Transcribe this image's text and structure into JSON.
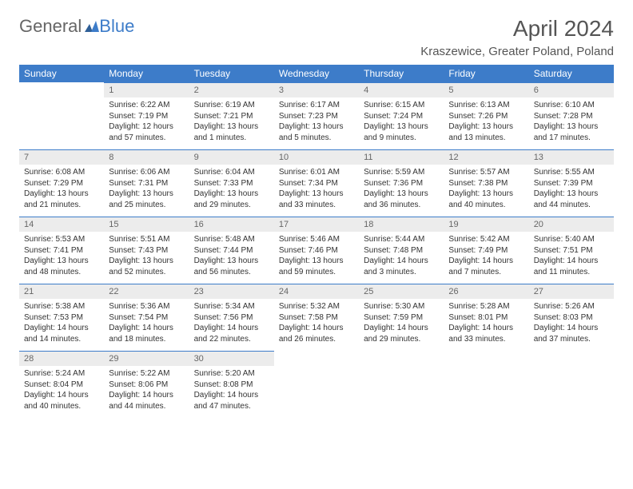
{
  "logo": {
    "text1": "General",
    "text2": "Blue"
  },
  "title": "April 2024",
  "location": "Kraszewice, Greater Poland, Poland",
  "colors": {
    "header_bg": "#3d7cc9",
    "header_text": "#ffffff",
    "daynum_bg": "#ececec",
    "border": "#3d7cc9"
  },
  "font": {
    "title_size": 28,
    "location_size": 15,
    "dayheader_size": 12,
    "daynum_size": 11,
    "detail_size": 10
  },
  "day_names": [
    "Sunday",
    "Monday",
    "Tuesday",
    "Wednesday",
    "Thursday",
    "Friday",
    "Saturday"
  ],
  "weeks": [
    [
      null,
      {
        "n": "1",
        "sr": "Sunrise: 6:22 AM",
        "ss": "Sunset: 7:19 PM",
        "d1": "Daylight: 12 hours",
        "d2": "and 57 minutes."
      },
      {
        "n": "2",
        "sr": "Sunrise: 6:19 AM",
        "ss": "Sunset: 7:21 PM",
        "d1": "Daylight: 13 hours",
        "d2": "and 1 minutes."
      },
      {
        "n": "3",
        "sr": "Sunrise: 6:17 AM",
        "ss": "Sunset: 7:23 PM",
        "d1": "Daylight: 13 hours",
        "d2": "and 5 minutes."
      },
      {
        "n": "4",
        "sr": "Sunrise: 6:15 AM",
        "ss": "Sunset: 7:24 PM",
        "d1": "Daylight: 13 hours",
        "d2": "and 9 minutes."
      },
      {
        "n": "5",
        "sr": "Sunrise: 6:13 AM",
        "ss": "Sunset: 7:26 PM",
        "d1": "Daylight: 13 hours",
        "d2": "and 13 minutes."
      },
      {
        "n": "6",
        "sr": "Sunrise: 6:10 AM",
        "ss": "Sunset: 7:28 PM",
        "d1": "Daylight: 13 hours",
        "d2": "and 17 minutes."
      }
    ],
    [
      {
        "n": "7",
        "sr": "Sunrise: 6:08 AM",
        "ss": "Sunset: 7:29 PM",
        "d1": "Daylight: 13 hours",
        "d2": "and 21 minutes."
      },
      {
        "n": "8",
        "sr": "Sunrise: 6:06 AM",
        "ss": "Sunset: 7:31 PM",
        "d1": "Daylight: 13 hours",
        "d2": "and 25 minutes."
      },
      {
        "n": "9",
        "sr": "Sunrise: 6:04 AM",
        "ss": "Sunset: 7:33 PM",
        "d1": "Daylight: 13 hours",
        "d2": "and 29 minutes."
      },
      {
        "n": "10",
        "sr": "Sunrise: 6:01 AM",
        "ss": "Sunset: 7:34 PM",
        "d1": "Daylight: 13 hours",
        "d2": "and 33 minutes."
      },
      {
        "n": "11",
        "sr": "Sunrise: 5:59 AM",
        "ss": "Sunset: 7:36 PM",
        "d1": "Daylight: 13 hours",
        "d2": "and 36 minutes."
      },
      {
        "n": "12",
        "sr": "Sunrise: 5:57 AM",
        "ss": "Sunset: 7:38 PM",
        "d1": "Daylight: 13 hours",
        "d2": "and 40 minutes."
      },
      {
        "n": "13",
        "sr": "Sunrise: 5:55 AM",
        "ss": "Sunset: 7:39 PM",
        "d1": "Daylight: 13 hours",
        "d2": "and 44 minutes."
      }
    ],
    [
      {
        "n": "14",
        "sr": "Sunrise: 5:53 AM",
        "ss": "Sunset: 7:41 PM",
        "d1": "Daylight: 13 hours",
        "d2": "and 48 minutes."
      },
      {
        "n": "15",
        "sr": "Sunrise: 5:51 AM",
        "ss": "Sunset: 7:43 PM",
        "d1": "Daylight: 13 hours",
        "d2": "and 52 minutes."
      },
      {
        "n": "16",
        "sr": "Sunrise: 5:48 AM",
        "ss": "Sunset: 7:44 PM",
        "d1": "Daylight: 13 hours",
        "d2": "and 56 minutes."
      },
      {
        "n": "17",
        "sr": "Sunrise: 5:46 AM",
        "ss": "Sunset: 7:46 PM",
        "d1": "Daylight: 13 hours",
        "d2": "and 59 minutes."
      },
      {
        "n": "18",
        "sr": "Sunrise: 5:44 AM",
        "ss": "Sunset: 7:48 PM",
        "d1": "Daylight: 14 hours",
        "d2": "and 3 minutes."
      },
      {
        "n": "19",
        "sr": "Sunrise: 5:42 AM",
        "ss": "Sunset: 7:49 PM",
        "d1": "Daylight: 14 hours",
        "d2": "and 7 minutes."
      },
      {
        "n": "20",
        "sr": "Sunrise: 5:40 AM",
        "ss": "Sunset: 7:51 PM",
        "d1": "Daylight: 14 hours",
        "d2": "and 11 minutes."
      }
    ],
    [
      {
        "n": "21",
        "sr": "Sunrise: 5:38 AM",
        "ss": "Sunset: 7:53 PM",
        "d1": "Daylight: 14 hours",
        "d2": "and 14 minutes."
      },
      {
        "n": "22",
        "sr": "Sunrise: 5:36 AM",
        "ss": "Sunset: 7:54 PM",
        "d1": "Daylight: 14 hours",
        "d2": "and 18 minutes."
      },
      {
        "n": "23",
        "sr": "Sunrise: 5:34 AM",
        "ss": "Sunset: 7:56 PM",
        "d1": "Daylight: 14 hours",
        "d2": "and 22 minutes."
      },
      {
        "n": "24",
        "sr": "Sunrise: 5:32 AM",
        "ss": "Sunset: 7:58 PM",
        "d1": "Daylight: 14 hours",
        "d2": "and 26 minutes."
      },
      {
        "n": "25",
        "sr": "Sunrise: 5:30 AM",
        "ss": "Sunset: 7:59 PM",
        "d1": "Daylight: 14 hours",
        "d2": "and 29 minutes."
      },
      {
        "n": "26",
        "sr": "Sunrise: 5:28 AM",
        "ss": "Sunset: 8:01 PM",
        "d1": "Daylight: 14 hours",
        "d2": "and 33 minutes."
      },
      {
        "n": "27",
        "sr": "Sunrise: 5:26 AM",
        "ss": "Sunset: 8:03 PM",
        "d1": "Daylight: 14 hours",
        "d2": "and 37 minutes."
      }
    ],
    [
      {
        "n": "28",
        "sr": "Sunrise: 5:24 AM",
        "ss": "Sunset: 8:04 PM",
        "d1": "Daylight: 14 hours",
        "d2": "and 40 minutes."
      },
      {
        "n": "29",
        "sr": "Sunrise: 5:22 AM",
        "ss": "Sunset: 8:06 PM",
        "d1": "Daylight: 14 hours",
        "d2": "and 44 minutes."
      },
      {
        "n": "30",
        "sr": "Sunrise: 5:20 AM",
        "ss": "Sunset: 8:08 PM",
        "d1": "Daylight: 14 hours",
        "d2": "and 47 minutes."
      },
      null,
      null,
      null,
      null
    ]
  ]
}
